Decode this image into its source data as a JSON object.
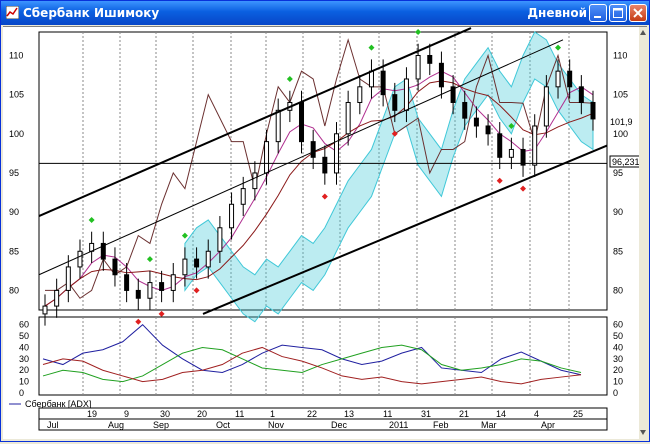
{
  "window": {
    "title": "Сбербанк Ишимоку",
    "timeframe": "Дневной",
    "accent": "#0a5fe0"
  },
  "icons": {
    "app": "chart-icon",
    "minimize": "minimize-icon",
    "maximize": "maximize-icon",
    "close": "close-icon",
    "scroll_up": "arrow-up-icon",
    "scroll_down": "arrow-down-icon"
  },
  "price_panel": {
    "y_ticks": [
      "110",
      "105",
      "100",
      "95",
      "90",
      "85",
      "80"
    ],
    "current_price_label": "96,2316",
    "last_label": "101,9",
    "ylim": [
      77.5,
      113
    ]
  },
  "indicator_panel": {
    "legend": "Сбербанк [ADX]",
    "y_ticks": [
      "60",
      "50",
      "40",
      "30",
      "20",
      "10",
      "0"
    ],
    "ylim": [
      0,
      65
    ]
  },
  "x_axis": {
    "days": [
      "19",
      "9",
      "30",
      "20",
      "11",
      "1",
      "22",
      "13",
      "11",
      "31",
      "21",
      "14",
      "4",
      "25"
    ],
    "months": [
      "Jul",
      "Aug",
      "Sep",
      "Oct",
      "Nov",
      "Dec",
      "2011",
      "Feb",
      "Mar",
      "Apr"
    ]
  },
  "chart_data": [
    {
      "type": "candlestick",
      "series_colors": {
        "up": "#000000",
        "down": "#000000",
        "kijun": "#8b1a1a",
        "tenkan": "#b03090",
        "chikou": "#6b3030",
        "cloud": "#40c8d8",
        "buy_marker": "#22c022",
        "sell_marker": "#e02020"
      },
      "ylim": [
        77.5,
        113
      ],
      "close_approx": [
        78,
        80,
        83,
        85,
        86,
        84,
        82,
        80,
        79,
        81,
        80,
        82,
        84,
        83,
        85,
        88,
        91,
        93,
        95,
        99,
        103,
        104,
        99,
        97,
        95,
        100,
        104,
        106,
        108,
        105,
        103,
        107,
        110,
        109,
        106,
        104,
        102,
        101,
        100,
        97,
        98,
        96,
        101,
        106,
        108,
        106,
        104,
        101.9
      ],
      "horizontal_line": 96.2316,
      "channel": {
        "upper": [
          89.5,
          113.5
        ],
        "middle": [
          82,
          112
        ],
        "lower": [
          77,
          98.5
        ]
      }
    },
    {
      "type": "line",
      "title": "Сбербанк [ADX]",
      "ylim": [
        0,
        65
      ],
      "series": [
        {
          "color": "#2020a0",
          "values": [
            30,
            25,
            35,
            38,
            45,
            60,
            42,
            30,
            20,
            18,
            25,
            35,
            42,
            40,
            38,
            30,
            25,
            28,
            35,
            40,
            22,
            20,
            18,
            30,
            36,
            28,
            20,
            16
          ]
        },
        {
          "color": "#20a020",
          "values": [
            15,
            20,
            18,
            12,
            10,
            15,
            25,
            35,
            40,
            38,
            30,
            22,
            20,
            18,
            25,
            30,
            35,
            40,
            42,
            38,
            25,
            20,
            22,
            25,
            30,
            28,
            22,
            18
          ]
        },
        {
          "color": "#a02020",
          "values": [
            25,
            30,
            28,
            20,
            15,
            10,
            12,
            18,
            20,
            25,
            35,
            40,
            32,
            28,
            22,
            15,
            12,
            14,
            10,
            8,
            10,
            12,
            14,
            10,
            8,
            12,
            14,
            16
          ]
        }
      ]
    }
  ]
}
